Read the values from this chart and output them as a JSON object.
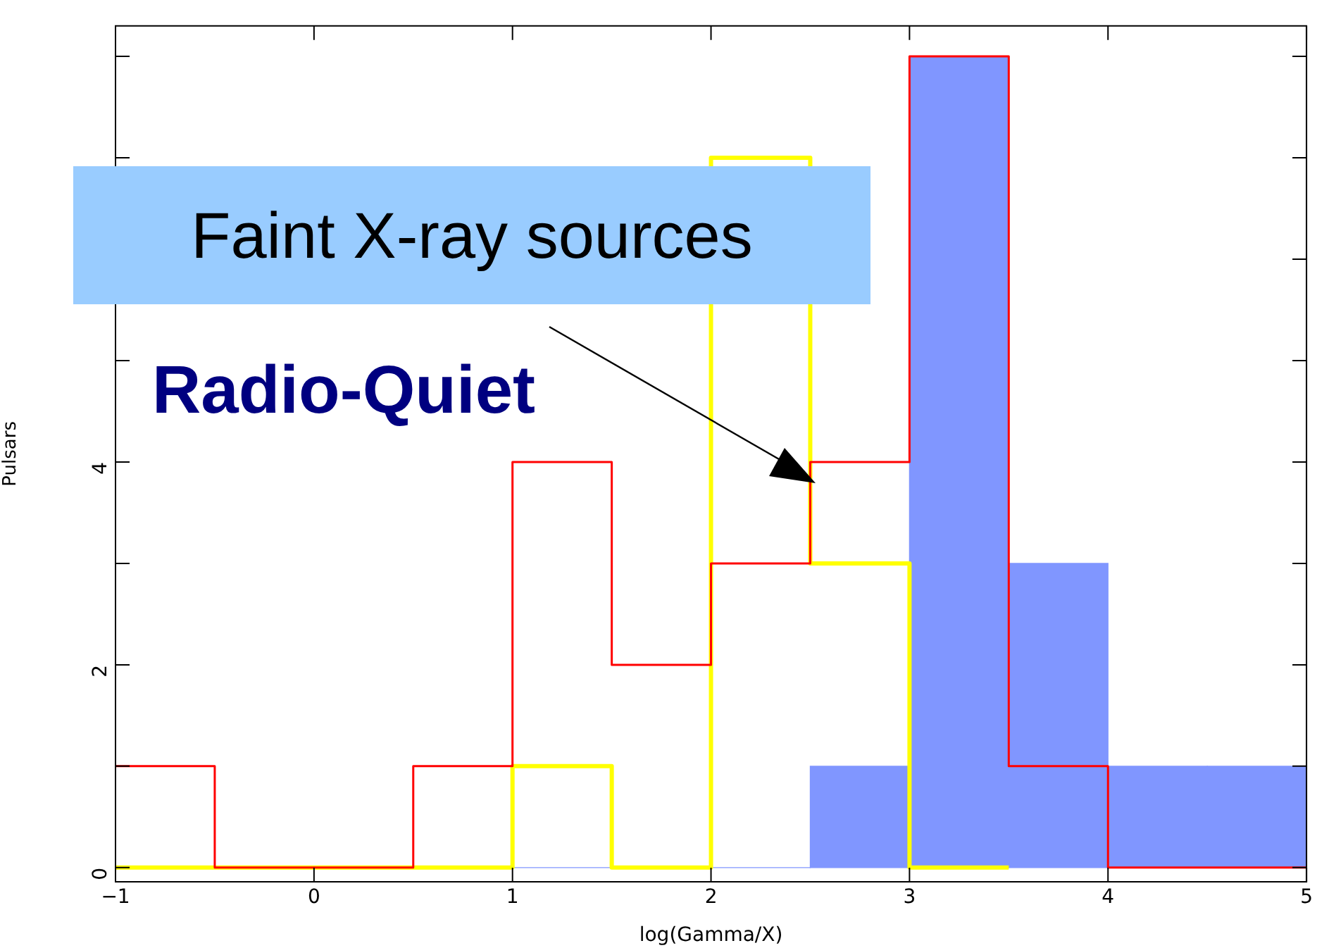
{
  "chart_data": {
    "type": "histogram",
    "xlabel": "log(Gamma/X)",
    "ylabel": "Pulsars",
    "bins": [
      -1,
      -0.5,
      0,
      0.5,
      1,
      1.5,
      2,
      2.5,
      3,
      3.5,
      4,
      4.5,
      5
    ],
    "series": [
      {
        "color": "#8096ff",
        "values": [
          0,
          0,
          0,
          0,
          0,
          0,
          0,
          1,
          8,
          3,
          1,
          1
        ]
      },
      {
        "type": "step",
        "color": "#ff0000",
        "x": [
          -1,
          -0.5,
          0,
          0.5,
          1,
          1.5,
          2,
          2.5,
          3,
          3.5,
          4,
          4.5,
          5
        ],
        "values": [
          1,
          0,
          0,
          1,
          4,
          2,
          3,
          4,
          8,
          1,
          0,
          0,
          0
        ]
      },
      {
        "type": "step",
        "color": "#ffff00",
        "x": [
          -1,
          -0.5,
          0,
          0.5,
          1,
          1.5,
          2,
          2.5,
          3,
          3.5
        ],
        "values": [
          0,
          0,
          0,
          0,
          1,
          0,
          7,
          3,
          0,
          0
        ]
      }
    ],
    "xlim": [
      -1,
      5
    ],
    "xticks": [
      -1,
      0,
      1,
      2,
      3,
      4,
      5
    ],
    "ylim": [
      -0.14,
      8.3
    ],
    "yticks": [
      0,
      {
        "value": 1,
        "label": null
      },
      2,
      {
        "value": 3,
        "label": null
      },
      4,
      {
        "value": 5,
        "label": null
      },
      {
        "value": 6,
        "label": null
      },
      {
        "value": 7,
        "label": null
      },
      {
        "value": 8,
        "label": null
      }
    ],
    "grid": false,
    "legend": false,
    "annotations": [
      "Faint X-ray sources",
      "Radio-Quiet"
    ]
  }
}
